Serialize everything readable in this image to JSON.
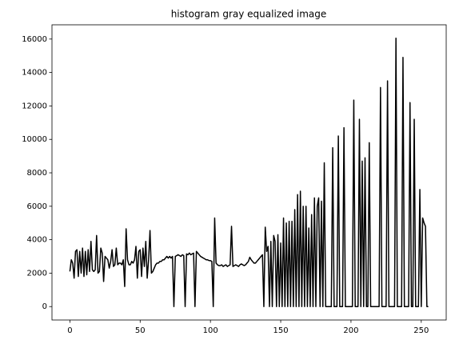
{
  "chart_data": {
    "type": "line",
    "title": "histogram gray equalized image",
    "color": "#000000",
    "xlim": [
      -12.75,
      267.75
    ],
    "ylim": [
      -802.5,
      16852.5
    ],
    "xticks": [
      0,
      50,
      100,
      150,
      200,
      250
    ],
    "yticks": [
      0,
      2000,
      4000,
      6000,
      8000,
      10000,
      12000,
      14000,
      16000
    ],
    "x": [
      0,
      1,
      2,
      3,
      4,
      5,
      6,
      7,
      8,
      9,
      10,
      11,
      12,
      13,
      14,
      15,
      16,
      17,
      18,
      19,
      20,
      21,
      22,
      23,
      24,
      25,
      26,
      27,
      28,
      29,
      30,
      31,
      32,
      33,
      34,
      35,
      36,
      37,
      38,
      39,
      40,
      41,
      42,
      43,
      44,
      45,
      46,
      47,
      48,
      49,
      50,
      51,
      52,
      53,
      54,
      55,
      56,
      57,
      58,
      59,
      60,
      61,
      62,
      63,
      64,
      65,
      66,
      67,
      68,
      69,
      70,
      71,
      72,
      73,
      74,
      75,
      76,
      77,
      78,
      79,
      80,
      81,
      82,
      83,
      84,
      85,
      86,
      87,
      88,
      89,
      90,
      91,
      92,
      93,
      94,
      95,
      96,
      97,
      98,
      99,
      100,
      101,
      102,
      103,
      104,
      105,
      106,
      107,
      108,
      109,
      110,
      111,
      112,
      113,
      114,
      115,
      116,
      117,
      118,
      119,
      120,
      121,
      122,
      123,
      124,
      125,
      126,
      127,
      128,
      129,
      130,
      131,
      132,
      133,
      134,
      135,
      136,
      137,
      138,
      139,
      140,
      141,
      142,
      143,
      144,
      145,
      146,
      147,
      148,
      149,
      150,
      151,
      152,
      153,
      154,
      155,
      156,
      157,
      158,
      159,
      160,
      161,
      162,
      163,
      164,
      165,
      166,
      167,
      168,
      169,
      170,
      171,
      172,
      173,
      174,
      175,
      176,
      177,
      178,
      179,
      180,
      181,
      182,
      183,
      184,
      185,
      186,
      187,
      188,
      189,
      190,
      191,
      192,
      193,
      194,
      195,
      196,
      197,
      198,
      199,
      200,
      201,
      202,
      203,
      204,
      205,
      206,
      207,
      208,
      209,
      210,
      211,
      212,
      213,
      214,
      215,
      216,
      217,
      218,
      219,
      220,
      221,
      222,
      223,
      224,
      225,
      226,
      227,
      228,
      229,
      230,
      231,
      232,
      233,
      234,
      235,
      236,
      237,
      238,
      239,
      240,
      241,
      242,
      243,
      244,
      245,
      246,
      247,
      248,
      249,
      250,
      251,
      252,
      253,
      254,
      255
    ],
    "values": [
      2100,
      2800,
      2600,
      1700,
      3300,
      3400,
      1800,
      3300,
      2000,
      3500,
      1800,
      3300,
      1900,
      3400,
      2100,
      3900,
      2200,
      2100,
      2200,
      4250,
      2000,
      2100,
      3500,
      3200,
      1500,
      3000,
      2900,
      2800,
      2300,
      2700,
      3400,
      2400,
      2500,
      3500,
      2500,
      2600,
      2600,
      2500,
      2800,
      1200,
      4650,
      2800,
      2500,
      2500,
      2700,
      2600,
      2800,
      3600,
      1700,
      3300,
      3400,
      1800,
      3500,
      2400,
      3900,
      1700,
      2800,
      4550,
      2000,
      2100,
      2300,
      2500,
      2600,
      2600,
      2700,
      2700,
      2800,
      2800,
      2900,
      3000,
      2900,
      3000,
      2900,
      3000,
      0,
      3000,
      3050,
      3100,
      3050,
      3000,
      3100,
      3050,
      0,
      3150,
      3100,
      3200,
      3100,
      3150,
      3200,
      0,
      3300,
      3200,
      3100,
      3000,
      2950,
      2900,
      2850,
      2800,
      2800,
      2750,
      2750,
      2700,
      0,
      5300,
      2600,
      2500,
      2450,
      2450,
      2500,
      2400,
      2450,
      2500,
      2400,
      2450,
      2500,
      4800,
      2400,
      2450,
      2500,
      2450,
      2400,
      2500,
      2550,
      2500,
      2450,
      2500,
      2600,
      2700,
      2950,
      2800,
      2700,
      2600,
      2600,
      2700,
      2800,
      2900,
      3000,
      3100,
      0,
      4750,
      3300,
      3600,
      0,
      3900,
      0,
      4250,
      3900,
      0,
      4300,
      0,
      3800,
      0,
      5300,
      0,
      5000,
      0,
      5100,
      0,
      5100,
      0,
      5800,
      0,
      6700,
      0,
      6900,
      0,
      6000,
      0,
      6000,
      0,
      4700,
      0,
      5500,
      0,
      6500,
      0,
      6000,
      6500,
      0,
      6300,
      0,
      8600,
      0,
      0,
      0,
      0,
      0,
      9500,
      0,
      0,
      0,
      10200,
      0,
      0,
      0,
      10700,
      0,
      0,
      0,
      0,
      0,
      0,
      12350,
      0,
      0,
      0,
      11200,
      0,
      8700,
      0,
      8900,
      0,
      0,
      9800,
      0,
      0,
      0,
      0,
      0,
      0,
      0,
      13100,
      0,
      0,
      0,
      0,
      13500,
      0,
      0,
      0,
      0,
      0,
      16050,
      0,
      0,
      0,
      0,
      14900,
      0,
      0,
      0,
      0,
      12200,
      0,
      0,
      11200,
      0,
      0,
      0,
      7000,
      0,
      5300,
      5000,
      4800,
      0,
      0
    ]
  }
}
